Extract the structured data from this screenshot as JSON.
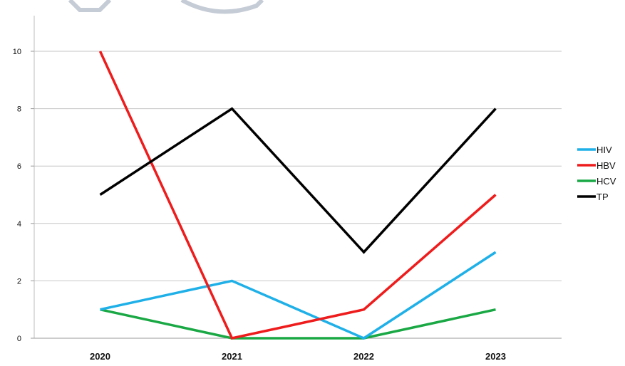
{
  "chart_data": {
    "type": "line",
    "categories": [
      "2020",
      "2021",
      "2022",
      "2023"
    ],
    "series": [
      {
        "name": "HIV",
        "values": [
          1,
          2,
          0,
          3
        ],
        "color": "#1fb0e8"
      },
      {
        "name": "HBV",
        "values": [
          10,
          0,
          1,
          5
        ],
        "color": "#ee1c1c"
      },
      {
        "name": "HCV",
        "values": [
          1,
          0,
          0,
          1
        ],
        "color": "#1aa845"
      },
      {
        "name": "TP",
        "values": [
          5,
          8,
          3,
          8
        ],
        "color": "#000000"
      }
    ],
    "title": "",
    "xlabel": "",
    "ylabel": "",
    "ylim": [
      0,
      10
    ],
    "yticks": [
      0,
      2,
      4,
      6,
      8,
      10
    ],
    "grid": "horizontal",
    "legend_position": "right",
    "watermark_color": "#c5ccd6"
  }
}
